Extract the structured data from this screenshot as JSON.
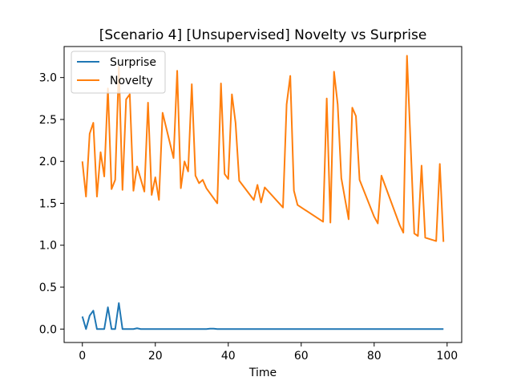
{
  "chart_data": {
    "type": "line",
    "title": "[Scenario 4] [Unsupervised] Novelty vs Surprise",
    "xlabel": "Time",
    "ylabel": "",
    "xlim": [
      -5,
      104
    ],
    "ylim": [
      -0.16,
      3.37
    ],
    "xticks": [
      0,
      20,
      40,
      60,
      80,
      100
    ],
    "yticks": [
      0.0,
      0.5,
      1.0,
      1.5,
      2.0,
      2.5,
      3.0
    ],
    "xtick_labels": [
      "0",
      "20",
      "40",
      "60",
      "80",
      "100"
    ],
    "ytick_labels": [
      "0.0",
      "0.5",
      "1.0",
      "1.5",
      "2.0",
      "2.5",
      "3.0"
    ],
    "grid": false,
    "legend_position": "top-left",
    "series": [
      {
        "name": "Surprise",
        "color": "#1f77b4",
        "x": [
          0,
          1,
          2,
          3,
          4,
          5,
          6,
          7,
          8,
          9,
          10,
          11,
          12,
          13,
          14,
          15,
          16,
          17,
          18,
          19,
          20,
          21,
          22,
          23,
          24,
          25,
          26,
          27,
          28,
          29,
          30,
          31,
          32,
          33,
          34,
          35,
          36,
          37,
          38,
          39,
          40,
          41,
          42,
          43,
          44,
          45,
          46,
          47,
          48,
          49,
          50,
          51,
          52,
          53,
          54,
          55,
          56,
          57,
          58,
          59,
          60,
          61,
          62,
          63,
          64,
          65,
          66,
          67,
          68,
          69,
          70,
          71,
          72,
          73,
          74,
          75,
          76,
          77,
          78,
          79,
          80,
          81,
          82,
          83,
          84,
          85,
          86,
          87,
          88,
          89,
          90,
          91,
          92,
          93,
          94,
          95,
          96,
          97,
          98,
          99
        ],
        "values": [
          0.15,
          0.0,
          0.16,
          0.22,
          0.0,
          0.0,
          0.0,
          0.26,
          0.0,
          0.0,
          0.31,
          0.0,
          0.0,
          0.0,
          0.0,
          0.01,
          0.0,
          0.0,
          0.0,
          0.0,
          0.0,
          0.0,
          0.0,
          0.0,
          0.0,
          0.0,
          0.0,
          0.0,
          0.0,
          0.0,
          0.0,
          0.0,
          0.0,
          0.0,
          0.0,
          0.005,
          0.005,
          0.0,
          0.0,
          0.0,
          0.0,
          0.0,
          0.0,
          0.0,
          0.0,
          0.0,
          0.0,
          0.0,
          0.0,
          0.0,
          0.0,
          0.0,
          0.0,
          0.0,
          0.0,
          0.0,
          0.0,
          0.0,
          0.0,
          0.0,
          0.0,
          0.0,
          0.0,
          0.0,
          0.0,
          0.0,
          0.0,
          0.0,
          0.0,
          0.0,
          0.0,
          0.0,
          0.0,
          0.0,
          0.0,
          0.0,
          0.0,
          0.0,
          0.0,
          0.0,
          0.0,
          0.0,
          0.0,
          0.0,
          0.0,
          0.0,
          0.0,
          0.0,
          0.0,
          0.0,
          0.0,
          0.0,
          0.0,
          0.0,
          0.0,
          0.0,
          0.0,
          0.0,
          0.0,
          0.0
        ]
      },
      {
        "name": "Novelty",
        "color": "#ff7f0e",
        "x": [
          0,
          1,
          2,
          3,
          4,
          5,
          6,
          7,
          8,
          9,
          10,
          11,
          12,
          13,
          14,
          15,
          17,
          18,
          19,
          20,
          21,
          22,
          25,
          26,
          27,
          28,
          29,
          30,
          31,
          32,
          33,
          34,
          37,
          38,
          39,
          40,
          41,
          42,
          43,
          47,
          48,
          49,
          50,
          55,
          56,
          57,
          58,
          59,
          66,
          67,
          68,
          69,
          70,
          71,
          73,
          74,
          75,
          76,
          80,
          81,
          82,
          87,
          88,
          89,
          91,
          92,
          93,
          94,
          97,
          98,
          99
        ],
        "values": [
          2.0,
          1.58,
          2.33,
          2.46,
          1.58,
          2.11,
          1.82,
          2.87,
          1.67,
          1.78,
          3.13,
          1.66,
          2.74,
          2.8,
          1.65,
          1.94,
          1.64,
          2.7,
          1.6,
          1.81,
          1.54,
          2.58,
          2.04,
          3.08,
          1.68,
          2.0,
          1.88,
          2.92,
          1.83,
          1.74,
          1.78,
          1.68,
          1.5,
          2.93,
          1.85,
          1.79,
          2.8,
          2.46,
          1.77,
          1.54,
          1.72,
          1.51,
          1.69,
          1.45,
          2.68,
          3.02,
          1.65,
          1.48,
          1.28,
          2.75,
          1.27,
          3.07,
          2.68,
          1.8,
          1.31,
          2.64,
          2.54,
          1.78,
          1.34,
          1.26,
          1.83,
          1.24,
          1.15,
          3.26,
          1.14,
          1.11,
          1.95,
          1.09,
          1.05,
          1.97,
          1.04
        ]
      }
    ]
  }
}
